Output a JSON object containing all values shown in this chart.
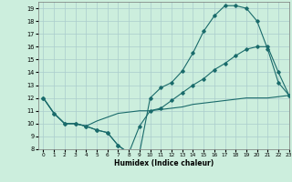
{
  "xlabel": "Humidex (Indice chaleur)",
  "bg_color": "#cceedd",
  "line_color": "#1a6b6b",
  "grid_color": "#aacccc",
  "line1_x": [
    0,
    1,
    2,
    3,
    4,
    5,
    6,
    7,
    8,
    9,
    10,
    11,
    12,
    13,
    14,
    15,
    16,
    17,
    18,
    19,
    20,
    21,
    22,
    23
  ],
  "line1_y": [
    12,
    10.8,
    10.0,
    10.0,
    9.8,
    9.5,
    9.3,
    8.3,
    7.7,
    7.7,
    12.0,
    12.8,
    13.2,
    14.1,
    15.5,
    17.2,
    18.4,
    19.2,
    19.2,
    19.0,
    18.0,
    15.8,
    13.2,
    12.2
  ],
  "line2_x": [
    0,
    1,
    2,
    3,
    4,
    5,
    6,
    7,
    8,
    9,
    10,
    11,
    12,
    13,
    14,
    15,
    16,
    17,
    18,
    19,
    20,
    21,
    22,
    23
  ],
  "line2_y": [
    12,
    10.8,
    10.0,
    10.0,
    9.8,
    9.5,
    9.3,
    8.3,
    7.7,
    9.8,
    11.0,
    11.2,
    11.8,
    12.4,
    13.0,
    13.5,
    14.2,
    14.7,
    15.3,
    15.8,
    16.0,
    16.0,
    14.0,
    12.2
  ],
  "line3_x": [
    0,
    1,
    2,
    3,
    4,
    5,
    6,
    7,
    8,
    9,
    10,
    11,
    12,
    13,
    14,
    15,
    16,
    17,
    18,
    19,
    20,
    21,
    22,
    23
  ],
  "line3_y": [
    12,
    10.8,
    10.0,
    10.0,
    9.8,
    10.2,
    10.5,
    10.8,
    10.9,
    11.0,
    11.0,
    11.1,
    11.2,
    11.3,
    11.5,
    11.6,
    11.7,
    11.8,
    11.9,
    12.0,
    12.0,
    12.0,
    12.1,
    12.2
  ],
  "xlim": [
    -0.5,
    23
  ],
  "ylim": [
    8,
    19.5
  ],
  "xticks": [
    0,
    1,
    2,
    3,
    4,
    5,
    6,
    7,
    8,
    9,
    10,
    11,
    12,
    13,
    14,
    15,
    16,
    17,
    18,
    19,
    20,
    21,
    22,
    23
  ],
  "yticks": [
    8,
    9,
    10,
    11,
    12,
    13,
    14,
    15,
    16,
    17,
    18,
    19
  ]
}
